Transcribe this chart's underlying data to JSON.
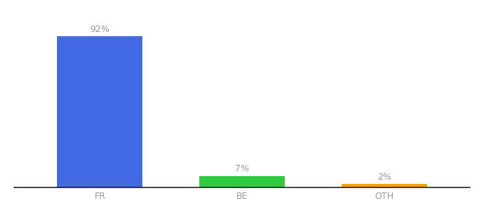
{
  "categories": [
    "FR",
    "BE",
    "OTH"
  ],
  "values": [
    92,
    7,
    2
  ],
  "bar_colors": [
    "#4169e1",
    "#2ecc40",
    "#f0a500"
  ],
  "background_color": "#ffffff",
  "label_color": "#999999",
  "label_fontsize": 9,
  "tick_fontsize": 9,
  "tick_color": "#999999",
  "ylim": [
    0,
    105
  ],
  "bar_width": 0.6
}
